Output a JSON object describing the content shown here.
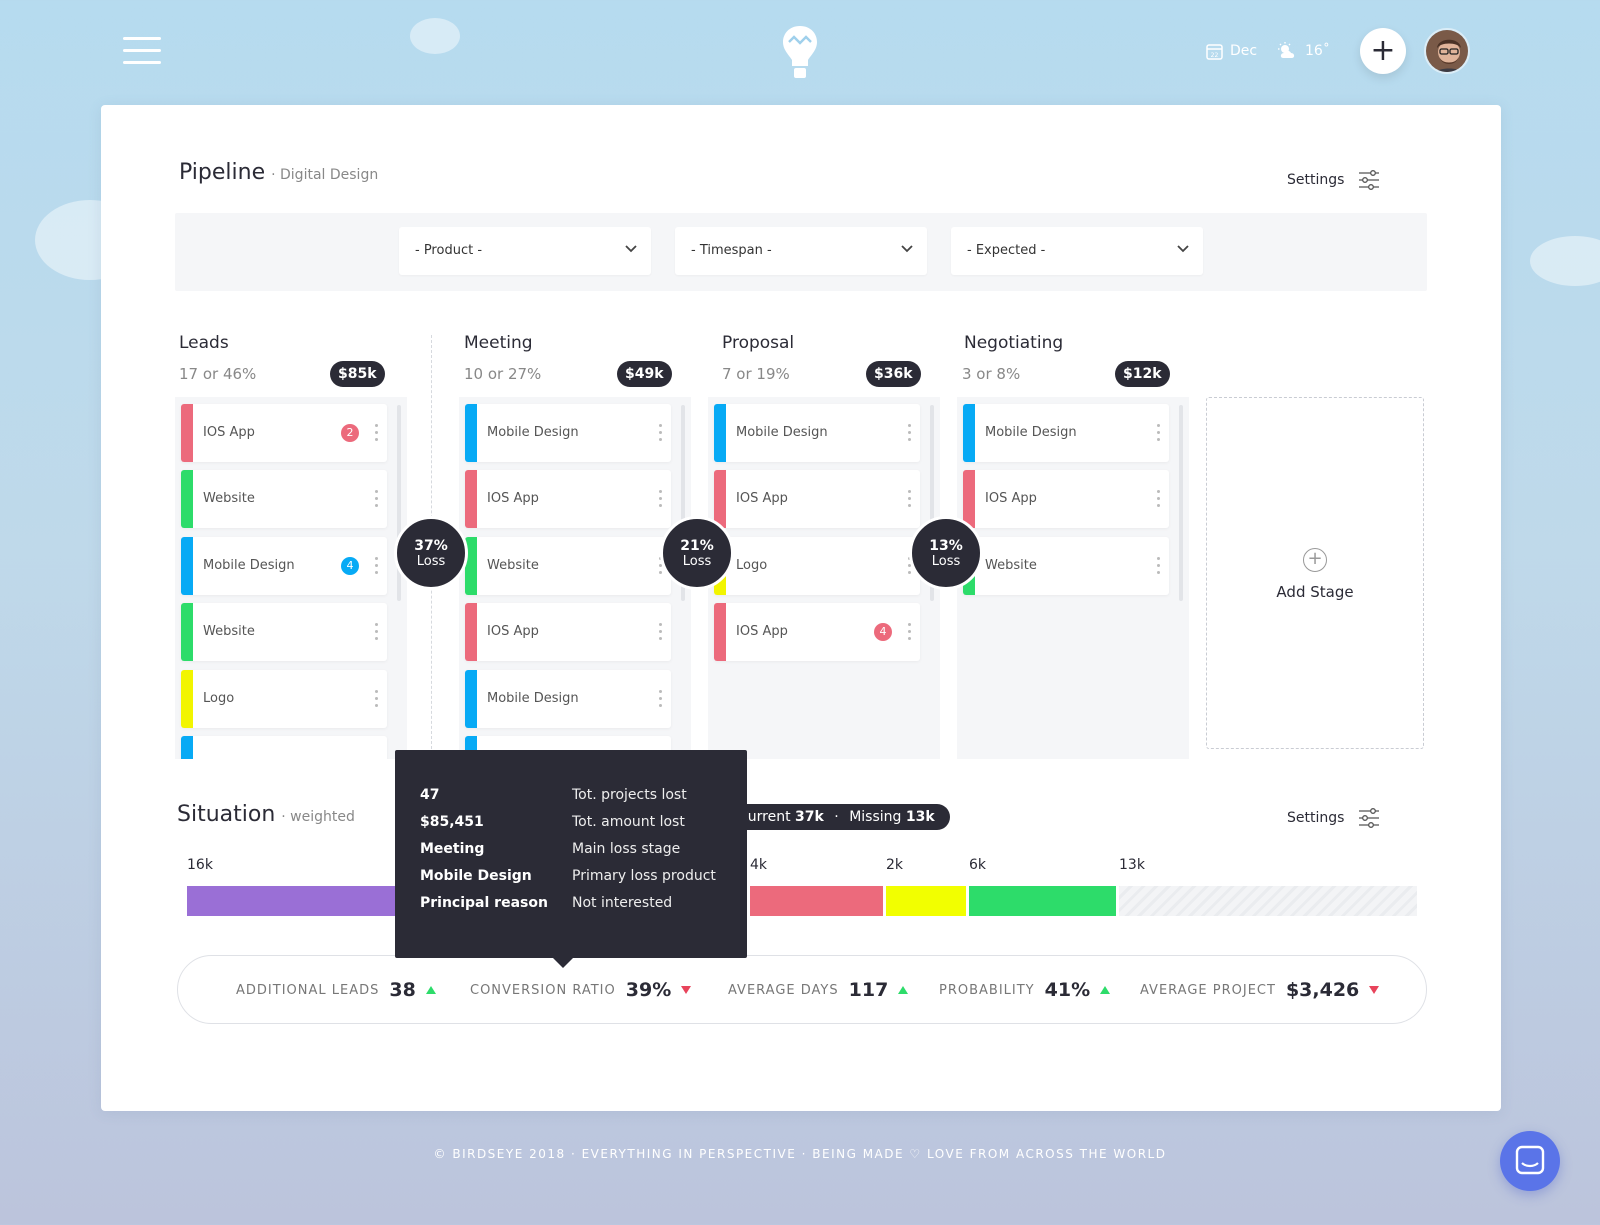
{
  "header": {
    "date_label": "Dec",
    "date_icon": "calendar-icon",
    "weather_label": "16˚",
    "weather_icon": "sun-cloud-icon",
    "add_icon": "plus-icon"
  },
  "pipeline": {
    "title": "Pipeline",
    "subtitle": "· Digital Design",
    "settings_label": "Settings"
  },
  "filters": [
    {
      "label": "- Product -"
    },
    {
      "label": "- Timespan -"
    },
    {
      "label": "- Expected -"
    }
  ],
  "stages": [
    {
      "name": "Leads",
      "stat": "17 or 46%",
      "amount": "$85k",
      "cards": [
        {
          "label": "IOS App",
          "color": "#ec6a7c",
          "badge": "2",
          "badge_color": "#ec6a7c"
        },
        {
          "label": "Website",
          "color": "#2ddc6a"
        },
        {
          "label": "Mobile Design",
          "color": "#07aaf5",
          "badge": "4",
          "badge_color": "#07aaf5"
        },
        {
          "label": "Website",
          "color": "#2ddc6a"
        },
        {
          "label": "Logo",
          "color": "#f2f500"
        },
        {
          "label": "",
          "color": "#07aaf5"
        }
      ]
    },
    {
      "name": "Meeting",
      "stat": "10 or 27%",
      "amount": "$49k",
      "cards": [
        {
          "label": "Mobile Design",
          "color": "#07aaf5"
        },
        {
          "label": "IOS App",
          "color": "#ec6a7c"
        },
        {
          "label": "Website",
          "color": "#2ddc6a"
        },
        {
          "label": "IOS App",
          "color": "#ec6a7c"
        },
        {
          "label": "Mobile Design",
          "color": "#07aaf5"
        },
        {
          "label": "",
          "color": "#07aaf5"
        }
      ]
    },
    {
      "name": "Proposal",
      "stat": "7 or 19%",
      "amount": "$36k",
      "cards": [
        {
          "label": "Mobile Design",
          "color": "#07aaf5"
        },
        {
          "label": "IOS App",
          "color": "#ec6a7c"
        },
        {
          "label": "Logo",
          "color": "#f2f500"
        },
        {
          "label": "IOS App",
          "color": "#ec6a7c",
          "badge": "4",
          "badge_color": "#ec6a7c"
        }
      ]
    },
    {
      "name": "Negotiating",
      "stat": "3 or 8%",
      "amount": "$12k",
      "cards": [
        {
          "label": "Mobile Design",
          "color": "#07aaf5"
        },
        {
          "label": "IOS App",
          "color": "#ec6a7c"
        },
        {
          "label": "Website",
          "color": "#2ddc6a"
        }
      ]
    }
  ],
  "losses": [
    {
      "pct": "37%",
      "label": "Loss"
    },
    {
      "pct": "21%",
      "label": "Loss"
    },
    {
      "pct": "13%",
      "label": "Loss"
    }
  ],
  "add_stage_label": "Add Stage",
  "situation": {
    "title": "Situation",
    "subtitle": "· weighted",
    "settings_label": "Settings",
    "current_label": "Current",
    "current_value": "37k",
    "missing_label": "Missing",
    "missing_value": "13k",
    "separator": "·",
    "segments": [
      {
        "label": "16k",
        "color": "#9a6fd6"
      },
      {
        "label": "4k",
        "color": "#ec6a7c"
      },
      {
        "label": "2k",
        "color": "#f2ff00"
      },
      {
        "label": "6k",
        "color": "#2ddc6a"
      },
      {
        "label": "13k",
        "color": "#eeeff2"
      }
    ]
  },
  "tooltip": {
    "rows": [
      {
        "key": "47",
        "value": "Tot. projects lost"
      },
      {
        "key": "$85,451",
        "value": "Tot. amount lost"
      },
      {
        "key": "Meeting",
        "value": "Main loss stage"
      },
      {
        "key": "Mobile Design",
        "value": "Primary loss product"
      },
      {
        "key": "Principal reason",
        "value": "Not interested"
      }
    ]
  },
  "stats": [
    {
      "label": "ADDITIONAL LEADS",
      "value": "38",
      "trend": "up"
    },
    {
      "label": "CONVERSION RATIO",
      "value": "39%",
      "trend": "down"
    },
    {
      "label": "AVERAGE DAYS",
      "value": "117",
      "trend": "up"
    },
    {
      "label": "PROBABILITY",
      "value": "41%",
      "trend": "up"
    },
    {
      "label": "AVERAGE PROJECT",
      "value": "$3,426",
      "trend": "down"
    }
  ],
  "footer": {
    "text_left": "© BIRDSEYE 2018 · EVERYTHING IN PERSPECTIVE · BEING MADE",
    "heart_icon": "heart-icon",
    "text_right": "LOVE FROM ACROSS THE WORLD"
  },
  "chat_icon": "chat-icon"
}
